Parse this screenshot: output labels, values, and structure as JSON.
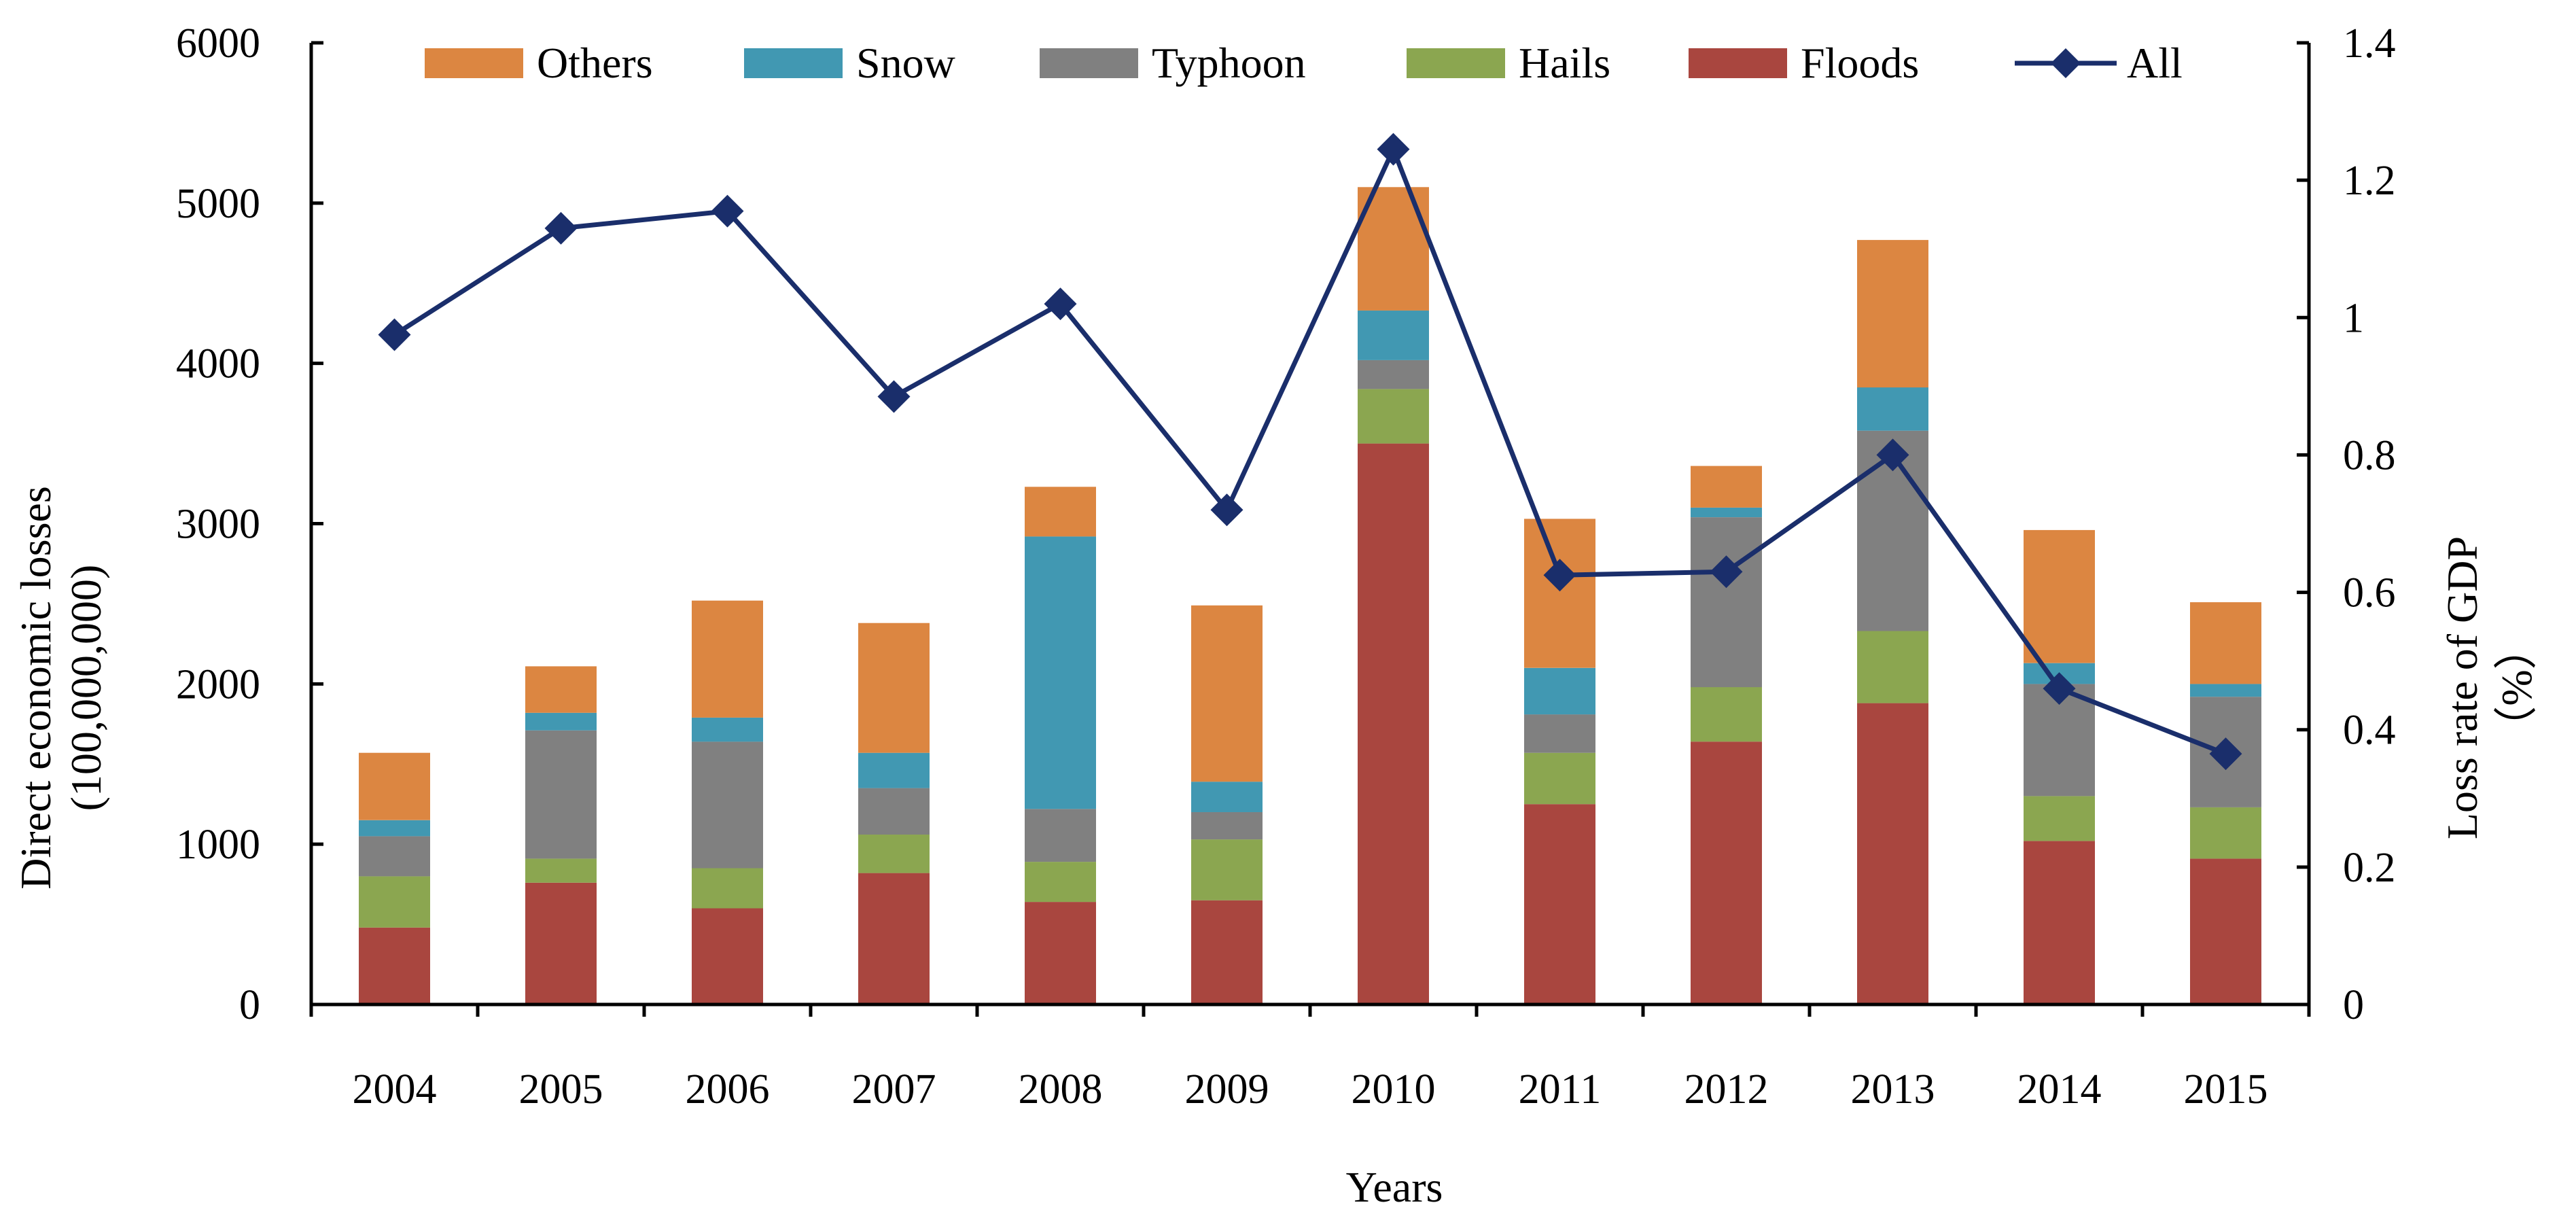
{
  "chart_data": {
    "type": "bar",
    "stacked": true,
    "categories": [
      "2004",
      "2005",
      "2006",
      "2007",
      "2008",
      "2009",
      "2010",
      "2011",
      "2012",
      "2013",
      "2014",
      "2015"
    ],
    "series": [
      {
        "name": "Floods",
        "color": "#A9463F",
        "values": [
          480,
          760,
          600,
          820,
          640,
          650,
          3500,
          1250,
          1640,
          1880,
          1020,
          910
        ]
      },
      {
        "name": "Hails",
        "color": "#8BA650",
        "values": [
          320,
          150,
          250,
          240,
          250,
          380,
          340,
          320,
          340,
          450,
          280,
          320
        ]
      },
      {
        "name": "Typhoon",
        "color": "#808080",
        "values": [
          250,
          800,
          790,
          290,
          330,
          170,
          180,
          240,
          1060,
          1250,
          700,
          690
        ]
      },
      {
        "name": "Snow",
        "color": "#4198B2",
        "values": [
          100,
          110,
          150,
          220,
          1700,
          190,
          310,
          290,
          60,
          270,
          130,
          80
        ]
      },
      {
        "name": "Others",
        "color": "#DC8641",
        "values": [
          420,
          290,
          730,
          810,
          310,
          1100,
          770,
          930,
          260,
          920,
          830,
          510
        ]
      }
    ],
    "line_series": {
      "name": "All",
      "color": "#1A2E6B",
      "axis": "right",
      "values": [
        0.975,
        1.13,
        1.155,
        0.885,
        1.02,
        0.72,
        1.245,
        0.625,
        0.63,
        0.8,
        0.46,
        0.365
      ]
    },
    "legend_order": [
      "Others",
      "Snow",
      "Typhoon",
      "Hails",
      "Floods",
      "All"
    ],
    "xlabel": "Years",
    "ylabel_lines": [
      "Direct economic losses",
      "(100,000,000)"
    ],
    "y2label_lines": [
      "Loss rate of GDP",
      "（%）"
    ],
    "ylim": [
      0,
      6000
    ],
    "yticks": [
      "0",
      "1000",
      "2000",
      "3000",
      "4000",
      "5000",
      "6000"
    ],
    "ylim_right": [
      0,
      1.4
    ],
    "yticks_right": [
      "0",
      "0.2",
      "0.4",
      "0.6",
      "0.8",
      "1",
      "1.2",
      "1.4"
    ],
    "grid": false,
    "legend_position": "top"
  }
}
